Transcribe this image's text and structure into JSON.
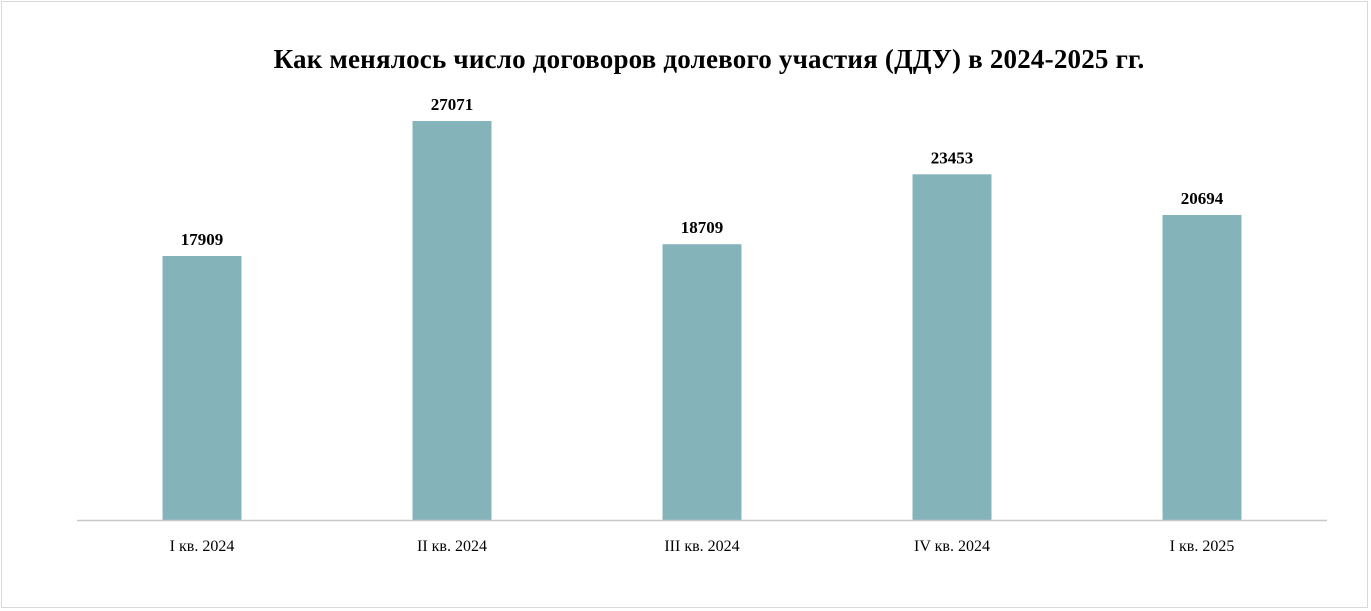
{
  "chart_data": {
    "type": "bar",
    "title": "Как менялось число договоров долевого участия (ДДУ) в 2024-2025 гг.",
    "categories": [
      "I кв. 2024",
      "II кв. 2024",
      "III кв. 2024",
      "IV кв. 2024",
      "I кв. 2025"
    ],
    "values": [
      17909,
      27071,
      18709,
      23453,
      20694
    ],
    "data_labels": [
      "17909",
      "27071",
      "18709",
      "23453",
      "20694"
    ],
    "xlabel": "",
    "ylabel": "",
    "ylim": [
      0,
      27071
    ],
    "grid": false,
    "legend": "none",
    "bar_color": "#84b4ba",
    "axis_color": "#c8c8c8"
  }
}
